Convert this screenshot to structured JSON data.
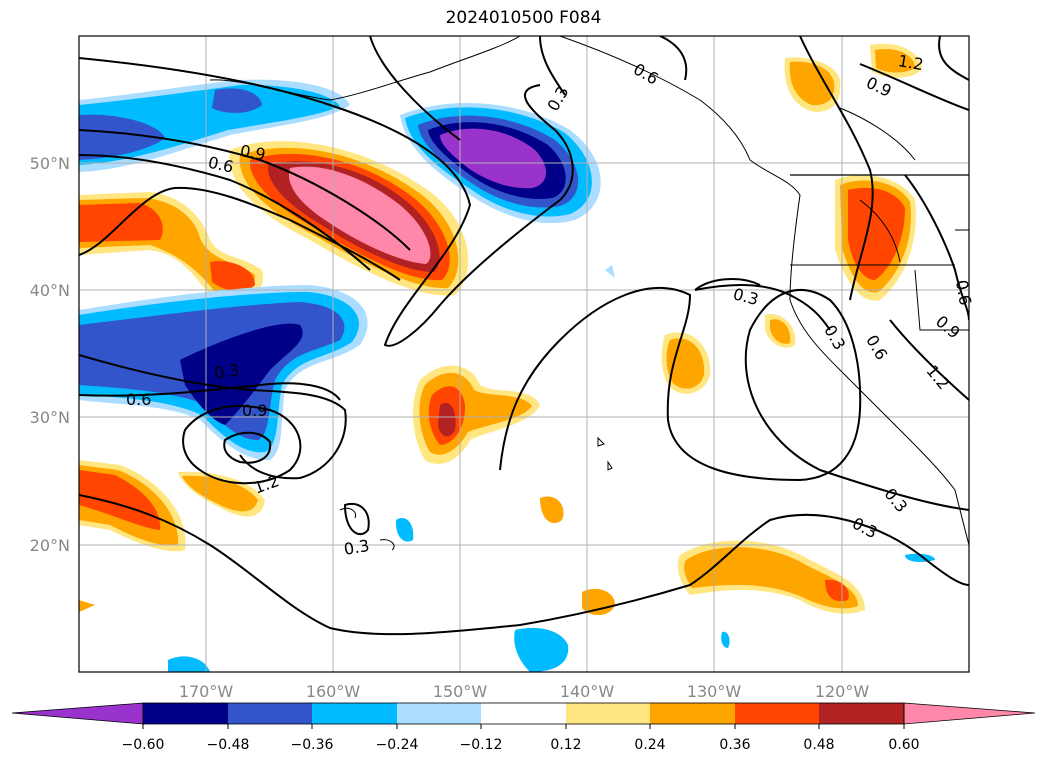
{
  "title": "2024010500 F084",
  "map": {
    "lon_range": [
      -180,
      -110
    ],
    "lat_range": [
      10,
      60
    ],
    "lon_ticks": [
      {
        "label": "170°W"
      },
      {
        "label": "160°W"
      },
      {
        "label": "150°W"
      },
      {
        "label": "140°W"
      },
      {
        "label": "130°W"
      },
      {
        "label": "120°W"
      }
    ],
    "lat_ticks": [
      {
        "label": "50°N"
      },
      {
        "label": "40°N"
      },
      {
        "label": "30°N"
      },
      {
        "label": "20°N"
      }
    ],
    "grid": true
  },
  "contour_labels": [
    {
      "text": "0.3"
    },
    {
      "text": "0.6"
    },
    {
      "text": "0.9"
    },
    {
      "text": "1.2"
    },
    {
      "text": "0.3"
    },
    {
      "text": "0.6"
    },
    {
      "text": "0.9"
    },
    {
      "text": "1.2"
    },
    {
      "text": "0.3"
    },
    {
      "text": "0.6"
    },
    {
      "text": "0.9"
    },
    {
      "text": "1.2"
    },
    {
      "text": "0.3"
    },
    {
      "text": "0.3"
    },
    {
      "text": "0.3"
    },
    {
      "text": "0.9"
    },
    {
      "text": "0.6"
    },
    {
      "text": "0.3"
    },
    {
      "text": "0.6"
    }
  ],
  "colorbar": {
    "labels": [
      "−0.60",
      "−0.48",
      "−0.36",
      "−0.24",
      "−0.12",
      "0.12",
      "0.24",
      "0.36",
      "0.48",
      "0.60"
    ],
    "colors": [
      "#9933cc",
      "#000088",
      "#3355cc",
      "#00bbff",
      "#aaddff",
      "#ffffff",
      "#ffe680",
      "#ffa500",
      "#ff4500",
      "#b22222",
      "#ff88aa"
    ]
  }
}
